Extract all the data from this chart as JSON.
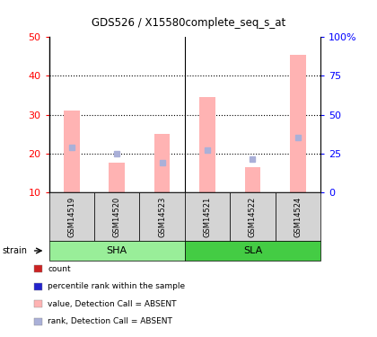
{
  "title": "GDS526 / X15580complete_seq_s_at",
  "samples": [
    "GSM14519",
    "GSM14520",
    "GSM14523",
    "GSM14521",
    "GSM14522",
    "GSM14524"
  ],
  "left_ylim": [
    10,
    50
  ],
  "left_yticks": [
    10,
    20,
    30,
    40,
    50
  ],
  "right_yticks": [
    0,
    25,
    50,
    75,
    100
  ],
  "right_yticklabels": [
    "0",
    "25",
    "50",
    "75",
    "100%"
  ],
  "bar_values": [
    31,
    17.5,
    25,
    34.5,
    16.5,
    45.5
  ],
  "rank_values": [
    21.5,
    20,
    17.5,
    20.8,
    18.5,
    24
  ],
  "bar_color": "#ffb3b3",
  "rank_color": "#aab0d8",
  "bar_bottom": 10,
  "dotted_line_values": [
    20,
    30,
    40
  ],
  "sha_color": "#99ee99",
  "sla_color": "#44cc44",
  "cell_bg": "#d4d4d4",
  "legend_items": [
    {
      "color": "#cc2222",
      "label": "count"
    },
    {
      "color": "#2222cc",
      "label": "percentile rank within the sample"
    },
    {
      "color": "#ffb3b3",
      "label": "value, Detection Call = ABSENT"
    },
    {
      "color": "#aab0d8",
      "label": "rank, Detection Call = ABSENT"
    }
  ]
}
